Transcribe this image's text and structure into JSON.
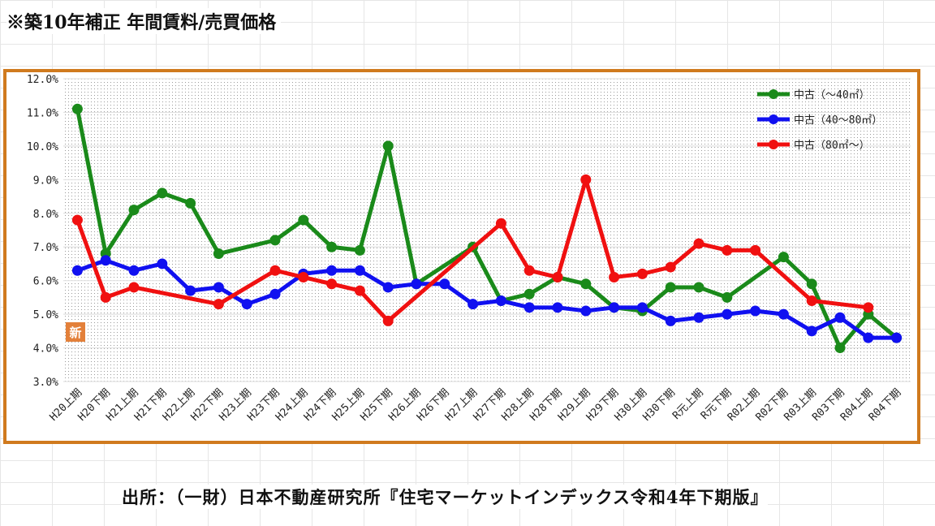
{
  "header": {
    "title": "※築10年補正 年間賃料/売買価格"
  },
  "footer": {
    "source": "出所：（一財）日本不動産研究所『住宅マーケットインデックス令和4年下期版』"
  },
  "badge": {
    "label": "新"
  },
  "chart_data": {
    "type": "line",
    "title": "",
    "xlabel": "",
    "ylabel": "",
    "ylim": [
      3.0,
      12.0
    ],
    "yticks": [
      "3.0%",
      "4.0%",
      "5.0%",
      "6.0%",
      "7.0%",
      "8.0%",
      "9.0%",
      "10.0%",
      "11.0%",
      "12.0%"
    ],
    "grid": true,
    "legend_position": "top-right",
    "categories": [
      "H20上期",
      "H20下期",
      "H21上期",
      "H21下期",
      "H22上期",
      "H22下期",
      "H23上期",
      "H23下期",
      "H24上期",
      "H24下期",
      "H25上期",
      "H25下期",
      "H26上期",
      "H26下期",
      "H27上期",
      "H27下期",
      "H28上期",
      "H28下期",
      "H29上期",
      "H29下期",
      "H30上期",
      "H30下期",
      "R元上期",
      "R元下期",
      "R02上期",
      "R02下期",
      "R03上期",
      "R03下期",
      "R04上期",
      "R04下期"
    ],
    "series": [
      {
        "name": "中古（～40㎡）",
        "color": "#1a8a1a",
        "values": [
          11.1,
          6.8,
          8.1,
          8.6,
          8.3,
          6.8,
          null,
          7.2,
          7.8,
          7.0,
          6.9,
          10.0,
          5.9,
          null,
          7.0,
          5.4,
          5.6,
          6.1,
          5.9,
          5.2,
          5.1,
          5.8,
          5.8,
          5.5,
          null,
          6.7,
          5.9,
          4.0,
          5.0,
          4.3
        ]
      },
      {
        "name": "中古（40～80㎡）",
        "color": "#1010f0",
        "values": [
          6.3,
          6.6,
          6.3,
          6.5,
          5.7,
          5.8,
          5.3,
          5.6,
          6.2,
          6.3,
          6.3,
          5.8,
          5.9,
          5.9,
          5.3,
          5.4,
          5.2,
          5.2,
          5.1,
          5.2,
          5.2,
          4.8,
          4.9,
          5.0,
          5.1,
          5.0,
          4.5,
          4.9,
          4.3,
          4.3
        ]
      },
      {
        "name": "中古（80㎡～）",
        "color": "#f01010",
        "values": [
          7.8,
          5.5,
          5.8,
          null,
          null,
          5.3,
          null,
          6.3,
          6.1,
          5.9,
          5.7,
          4.8,
          null,
          null,
          null,
          7.7,
          6.3,
          6.1,
          9.0,
          6.1,
          6.2,
          6.4,
          7.1,
          6.9,
          6.9,
          null,
          5.4,
          null,
          5.2,
          null
        ]
      }
    ]
  }
}
